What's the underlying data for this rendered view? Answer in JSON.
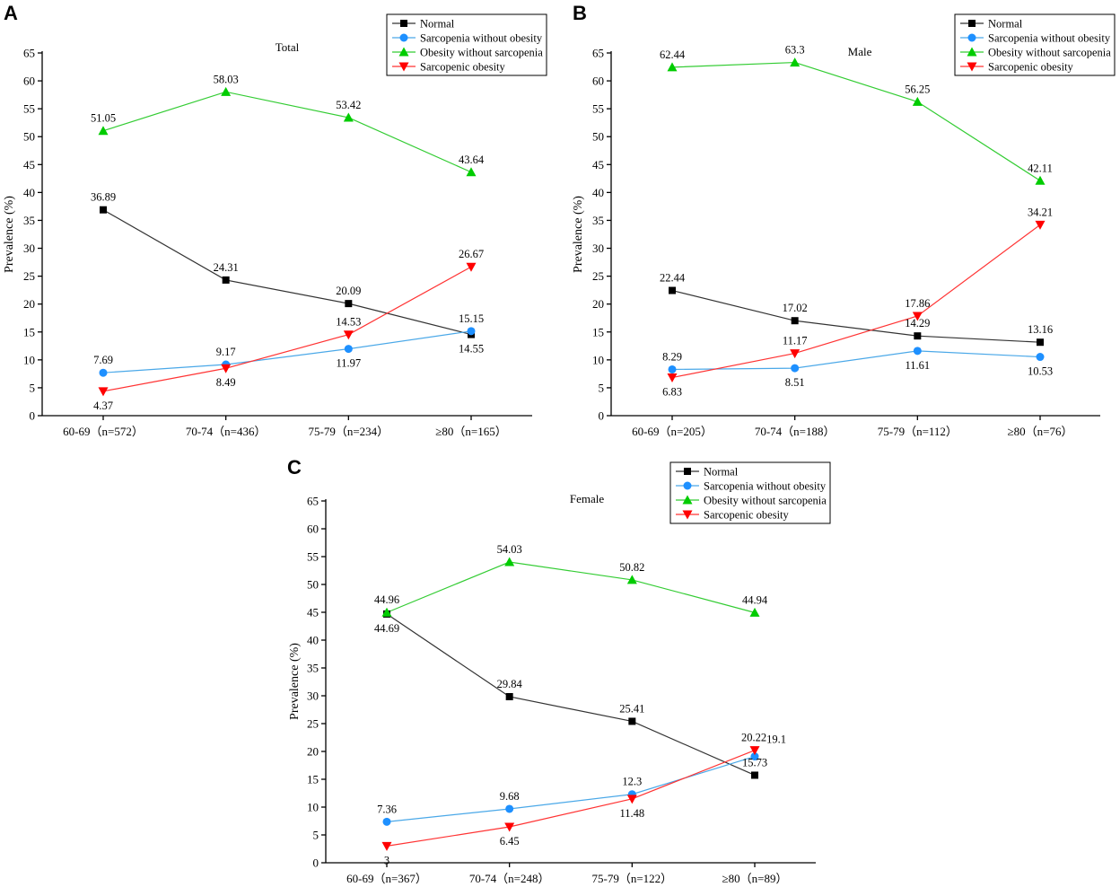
{
  "chart_data": [
    {
      "type": "line",
      "panel": "A",
      "title": "Total",
      "ylabel": "Prevalence (%)",
      "xlabel": "",
      "ylim": [
        0,
        65
      ],
      "yticks": [
        0,
        5,
        10,
        15,
        20,
        25,
        30,
        35,
        40,
        45,
        50,
        55,
        60,
        65
      ],
      "categories": [
        "60-69（n=572）",
        "70-74（n=436）",
        "75-79（n=234）",
        "≥80（n=165）"
      ],
      "legend": "top-right",
      "series": [
        {
          "name": "Normal",
          "color": "#333333",
          "marker": "square",
          "markerColor": "#000000",
          "values": [
            36.89,
            24.31,
            20.09,
            14.55
          ],
          "labels": [
            "36.89",
            "24.31",
            "20.09",
            "14.55"
          ]
        },
        {
          "name": "Sarcopenia without obesity",
          "color": "#4aa8e8",
          "marker": "circle",
          "markerColor": "#1e90ff",
          "values": [
            7.69,
            9.17,
            11.97,
            15.15
          ],
          "labels": [
            "7.69",
            "9.17",
            "11.97",
            "15.15"
          ]
        },
        {
          "name": "Obesity without sarcopenia",
          "color": "#33cc33",
          "marker": "triangle-up",
          "markerColor": "#00cc00",
          "values": [
            51.05,
            58.03,
            53.42,
            43.64
          ],
          "labels": [
            "51.05",
            "58.03",
            "53.42",
            "43.64"
          ]
        },
        {
          "name": "Sarcopenic obesity",
          "color": "#ff3333",
          "marker": "triangle-down",
          "markerColor": "#ff0000",
          "values": [
            4.37,
            8.49,
            14.53,
            26.67
          ],
          "labels": [
            "4.37",
            "8.49",
            "14.53",
            "26.67"
          ]
        }
      ]
    },
    {
      "type": "line",
      "panel": "B",
      "title": "Male",
      "ylabel": "Prevalence (%)",
      "xlabel": "",
      "ylim": [
        0,
        65
      ],
      "yticks": [
        0,
        5,
        10,
        15,
        20,
        25,
        30,
        35,
        40,
        45,
        50,
        55,
        60,
        65
      ],
      "categories": [
        "60-69（n=205）",
        "70-74（n=188）",
        "75-79（n=112）",
        "≥80（n=76）"
      ],
      "legend": "top-right",
      "series": [
        {
          "name": "Normal",
          "color": "#333333",
          "marker": "square",
          "markerColor": "#000000",
          "values": [
            22.44,
            17.02,
            14.29,
            13.16
          ],
          "labels": [
            "22.44",
            "17.02",
            "14.29",
            "13.16"
          ]
        },
        {
          "name": "Sarcopenia without obesity",
          "color": "#4aa8e8",
          "marker": "circle",
          "markerColor": "#1e90ff",
          "values": [
            8.29,
            8.51,
            11.61,
            10.53
          ],
          "labels": [
            "8.29",
            "8.51",
            "11.61",
            "10.53"
          ]
        },
        {
          "name": "Obesity without sarcopenia",
          "color": "#33cc33",
          "marker": "triangle-up",
          "markerColor": "#00cc00",
          "values": [
            62.44,
            63.3,
            56.25,
            42.11
          ],
          "labels": [
            "62.44",
            "63.3",
            "56.25",
            "42.11"
          ]
        },
        {
          "name": "Sarcopenic obesity",
          "color": "#ff3333",
          "marker": "triangle-down",
          "markerColor": "#ff0000",
          "values": [
            6.83,
            11.17,
            17.86,
            34.21
          ],
          "labels": [
            "6.83",
            "11.17",
            "17.86",
            "34.21"
          ]
        }
      ]
    },
    {
      "type": "line",
      "panel": "C",
      "title": "Female",
      "ylabel": "Prevalence (%)",
      "xlabel": "",
      "ylim": [
        0,
        65
      ],
      "yticks": [
        0,
        5,
        10,
        15,
        20,
        25,
        30,
        35,
        40,
        45,
        50,
        55,
        60,
        65
      ],
      "categories": [
        "60-69（n=367）",
        "70-74（n=248）",
        "75-79（n=122）",
        "≥80（n=89）"
      ],
      "legend": "top-right",
      "series": [
        {
          "name": "Normal",
          "color": "#333333",
          "marker": "square",
          "markerColor": "#000000",
          "values": [
            44.69,
            29.84,
            25.41,
            15.73
          ],
          "labels": [
            "44.69",
            "29.84",
            "25.41",
            "15.73"
          ]
        },
        {
          "name": "Sarcopenia without obesity",
          "color": "#4aa8e8",
          "marker": "circle",
          "markerColor": "#1e90ff",
          "values": [
            7.36,
            9.68,
            12.3,
            19.1
          ],
          "labels": [
            "7.36",
            "9.68",
            "12.3",
            "19.1"
          ]
        },
        {
          "name": "Obesity without sarcopenia",
          "color": "#33cc33",
          "marker": "triangle-up",
          "markerColor": "#00cc00",
          "values": [
            44.96,
            54.03,
            50.82,
            44.94
          ],
          "labels": [
            "44.96",
            "54.03",
            "50.82",
            "44.94"
          ]
        },
        {
          "name": "Sarcopenic obesity",
          "color": "#ff3333",
          "marker": "triangle-down",
          "markerColor": "#ff0000",
          "values": [
            3,
            6.45,
            11.48,
            20.22
          ],
          "labels": [
            "3",
            "6.45",
            "11.48",
            "20.22"
          ]
        }
      ]
    }
  ]
}
